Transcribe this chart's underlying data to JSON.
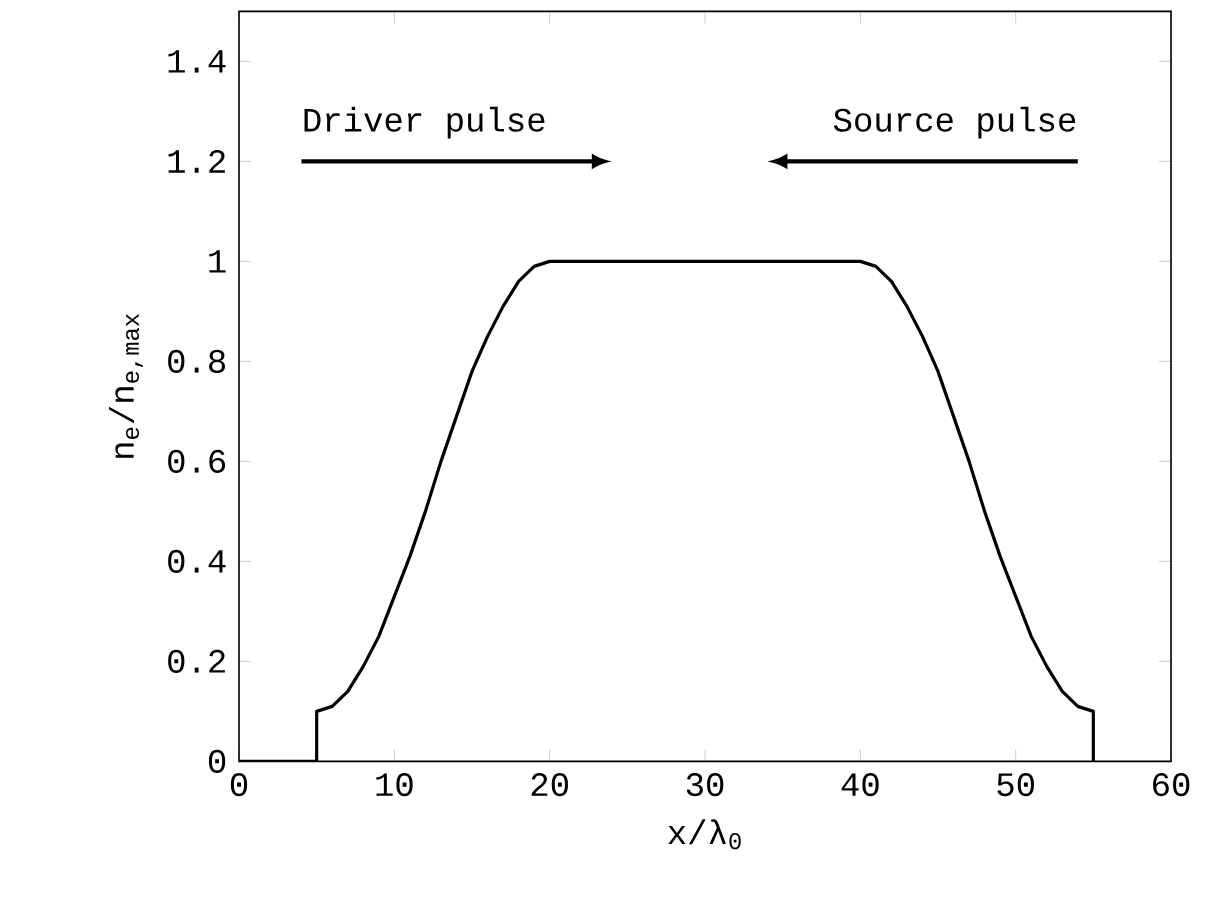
{
  "chart_data": {
    "type": "line",
    "xlabel": "x/λ$_{0}$",
    "ylabel": "n$_{e}$/n$_{e,max}$",
    "annotations": [
      "Driver pulse",
      "Source pulse"
    ],
    "x": [
      0,
      5,
      5,
      6,
      7,
      8,
      9,
      10,
      11,
      12,
      13,
      14,
      15,
      16,
      17,
      18,
      19,
      20,
      40,
      41,
      42,
      43,
      44,
      45,
      46,
      47,
      48,
      49,
      50,
      51,
      52,
      53,
      54,
      55,
      55
    ],
    "series": [
      {
        "color": "#000000",
        "values": [
          0,
          0,
          0.1,
          0.11,
          0.14,
          0.19,
          0.25,
          0.33,
          0.41,
          0.5,
          0.6,
          0.69,
          0.78,
          0.85,
          0.91,
          0.96,
          0.99,
          1,
          1,
          0.99,
          0.96,
          0.91,
          0.85,
          0.78,
          0.69,
          0.6,
          0.5,
          0.41,
          0.33,
          0.25,
          0.19,
          0.14,
          0.11,
          0.1,
          0
        ]
      }
    ],
    "xlim": [
      0,
      60
    ],
    "ylim": [
      0,
      1.5
    ],
    "xticks": [
      0,
      10,
      20,
      30,
      40,
      50,
      60
    ],
    "yticks": [
      0,
      0.2,
      0.4,
      0.6,
      0.8,
      1,
      1.2,
      1.4
    ],
    "grid": false,
    "marker": "none",
    "line_style": "solid"
  }
}
